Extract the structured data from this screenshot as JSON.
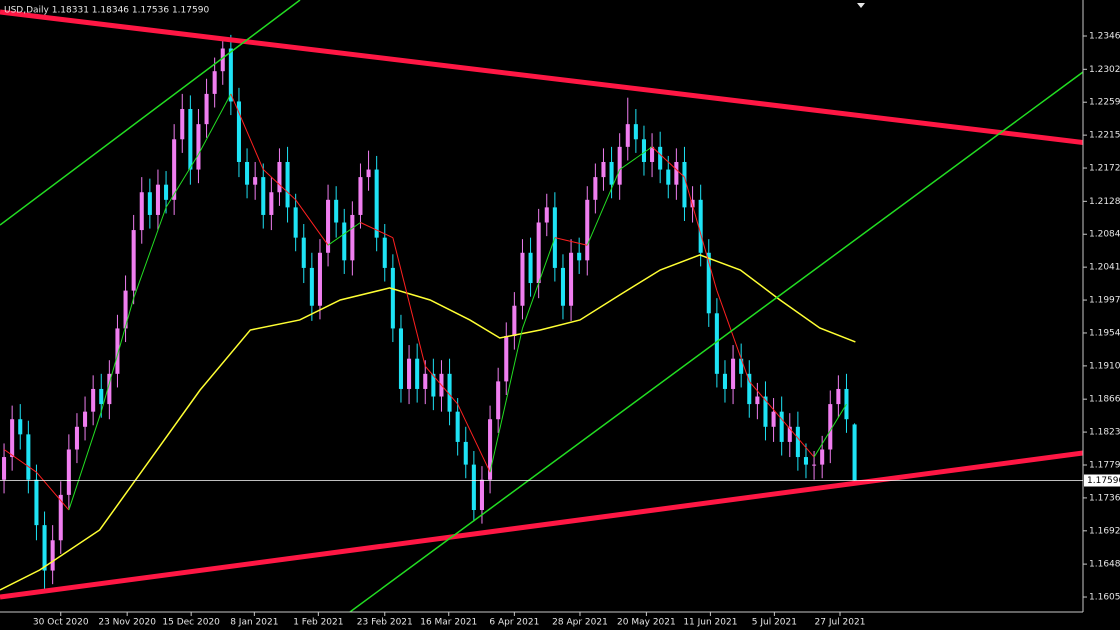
{
  "chart_data": {
    "type": "candlestick",
    "header": "USD,Daily  1.18331 1.18346 1.17536 1.17590",
    "up_color": "#f07ef0",
    "down_color": "#1ee3f5",
    "xlim": [
      0,
      133.7
    ],
    "xticks": [
      {
        "value": 7.5,
        "label": "30 Oct 2020"
      },
      {
        "value": 15.7,
        "label": "23 Nov 2020"
      },
      {
        "value": 23.6,
        "label": "15 Dec 2020"
      },
      {
        "value": 31.4,
        "label": "8 Jan 2021"
      },
      {
        "value": 39.3,
        "label": "1 Feb 2021"
      },
      {
        "value": 47.5,
        "label": "23 Feb 2021"
      },
      {
        "value": 55.4,
        "label": "16 Mar 2021"
      },
      {
        "value": 63.5,
        "label": "6 Apr 2021"
      },
      {
        "value": 71.6,
        "label": "28 Apr 2021"
      },
      {
        "value": 79.8,
        "label": "20 May 2021"
      },
      {
        "value": 87.7,
        "label": "11 Jun 2021"
      },
      {
        "value": 95.6,
        "label": "5 Jul 2021"
      },
      {
        "value": 103.7,
        "label": "27 Jul 2021"
      }
    ],
    "ylim": [
      1.15852,
      1.23941
    ],
    "yticks": [
      1.23465,
      1.23025,
      {
        "value": 1.2259,
        "label": "1.22590"
      },
      1.22155,
      {
        "value": 1.2172,
        "label": "1.21720"
      },
      {
        "value": 1.2128,
        "label": "1.21280"
      },
      1.20845,
      {
        "value": 1.2041,
        "label": "1.20410"
      },
      1.19975,
      {
        "value": 1.1954,
        "label": "1.19540"
      },
      1.19105,
      1.18665,
      {
        "value": 1.1823,
        "label": "1.18230"
      },
      1.17795,
      {
        "value": 1.1736,
        "label": "1.17360"
      },
      1.16925,
      1.16485,
      {
        "value": 1.1605,
        "label": "1.16050"
      }
    ],
    "price_line": {
      "value": 1.1759,
      "label": "1.17590",
      "color": "#ffffff"
    },
    "open": [
      1.176,
      1.179,
      1.184,
      1.182,
      1.176,
      1.17,
      1.164,
      1.168,
      1.174,
      1.18,
      1.183,
      1.185,
      1.188,
      1.186,
      1.19,
      1.196,
      1.201,
      1.209,
      1.214,
      1.211,
      1.215,
      1.213,
      1.221,
      1.225,
      1.217,
      1.223,
      1.227,
      1.23,
      1.233,
      1.226,
      1.218,
      1.215,
      1.216,
      1.211,
      1.214,
      1.218,
      1.212,
      1.208,
      1.204,
      1.199,
      1.206,
      1.213,
      1.21,
      1.205,
      1.211,
      1.216,
      1.217,
      1.208,
      1.204,
      1.196,
      1.188,
      1.192,
      1.188,
      1.19,
      1.187,
      1.19,
      1.185,
      1.181,
      1.178,
      1.172,
      1.176,
      1.184,
      1.189,
      1.195,
      1.199,
      1.206,
      1.202,
      1.21,
      1.212,
      1.204,
      1.199,
      1.206,
      1.205,
      1.213,
      1.216,
      1.218,
      1.215,
      1.22,
      1.223,
      1.221,
      1.218,
      1.22,
      1.217,
      1.215,
      1.218,
      1.212,
      1.213,
      1.206,
      1.198,
      1.19,
      1.188,
      1.192,
      1.19,
      1.186,
      1.187,
      1.183,
      1.185,
      1.181,
      1.183,
      1.179,
      1.178,
      1.178,
      1.18,
      1.186,
      1.188,
      1.18331
    ],
    "high": [
      1.1808,
      1.1858,
      1.186,
      1.1838,
      1.178,
      1.1718,
      1.17,
      1.1758,
      1.182,
      1.1848,
      1.187,
      1.1898,
      1.19,
      1.1918,
      1.1978,
      1.203,
      1.211,
      1.216,
      1.2158,
      1.217,
      1.2168,
      1.223,
      1.227,
      1.2268,
      1.225,
      1.229,
      1.2318,
      1.2345,
      1.2348,
      1.2278,
      1.2198,
      1.218,
      1.2178,
      1.216,
      1.2198,
      1.22,
      1.2138,
      1.2098,
      1.206,
      1.2078,
      1.215,
      1.2148,
      1.2118,
      1.2128,
      1.2178,
      1.2195,
      1.2188,
      1.2098,
      1.2058,
      1.1978,
      1.1938,
      1.194,
      1.1918,
      1.192,
      1.1918,
      1.192,
      1.1868,
      1.183,
      1.1798,
      1.1778,
      1.1858,
      1.1908,
      1.1968,
      1.2008,
      1.2078,
      1.208,
      1.2118,
      1.2138,
      1.214,
      1.2058,
      1.2078,
      1.208,
      1.2148,
      1.2178,
      1.2198,
      1.22,
      1.2218,
      1.2265,
      1.225,
      1.2228,
      1.2218,
      1.222,
      1.2188,
      1.2198,
      1.22,
      1.2148,
      1.215,
      1.2078,
      1.2,
      1.1918,
      1.1938,
      1.194,
      1.1918,
      1.1888,
      1.189,
      1.1868,
      1.187,
      1.1848,
      1.185,
      1.1808,
      1.1798,
      1.1818,
      1.1878,
      1.1898,
      1.19,
      1.18346
    ],
    "low": [
      1.1742,
      1.1772,
      1.18,
      1.1742,
      1.168,
      1.161,
      1.1622,
      1.1662,
      1.1722,
      1.1782,
      1.1812,
      1.1832,
      1.1842,
      1.184,
      1.1882,
      1.1942,
      1.1992,
      1.2072,
      1.2092,
      1.209,
      1.2112,
      1.211,
      1.2192,
      1.215,
      1.2152,
      1.2212,
      1.2252,
      1.2282,
      1.2242,
      1.216,
      1.2132,
      1.213,
      1.2092,
      1.209,
      1.2122,
      1.21,
      1.2062,
      1.202,
      1.197,
      1.1972,
      1.2042,
      1.208,
      1.2032,
      1.203,
      1.2092,
      1.2142,
      1.2062,
      1.2022,
      1.1942,
      1.1862,
      1.186,
      1.1862,
      1.186,
      1.1852,
      1.185,
      1.1832,
      1.1792,
      1.1762,
      1.1705,
      1.1702,
      1.1742,
      1.1822,
      1.1872,
      1.1932,
      1.1972,
      1.2002,
      1.2,
      1.2082,
      1.2022,
      1.1972,
      1.197,
      1.2032,
      1.203,
      1.2112,
      1.2142,
      1.2132,
      1.213,
      1.2182,
      1.2192,
      1.2162,
      1.216,
      1.2152,
      1.2132,
      1.213,
      1.2102,
      1.21,
      1.2042,
      1.1962,
      1.1882,
      1.1862,
      1.186,
      1.1882,
      1.1842,
      1.184,
      1.1812,
      1.181,
      1.1792,
      1.179,
      1.1772,
      1.1762,
      1.176,
      1.1762,
      1.1782,
      1.1842,
      1.1822,
      1.17536
    ],
    "close": [
      1.179,
      1.184,
      1.182,
      1.176,
      1.17,
      1.164,
      1.168,
      1.174,
      1.18,
      1.183,
      1.185,
      1.188,
      1.186,
      1.19,
      1.196,
      1.201,
      1.209,
      1.214,
      1.211,
      1.215,
      1.213,
      1.221,
      1.225,
      1.217,
      1.223,
      1.227,
      1.23,
      1.233,
      1.226,
      1.218,
      1.215,
      1.216,
      1.211,
      1.214,
      1.218,
      1.212,
      1.208,
      1.204,
      1.199,
      1.206,
      1.213,
      1.21,
      1.205,
      1.211,
      1.216,
      1.217,
      1.208,
      1.204,
      1.196,
      1.188,
      1.192,
      1.188,
      1.19,
      1.187,
      1.19,
      1.185,
      1.181,
      1.178,
      1.172,
      1.176,
      1.184,
      1.189,
      1.195,
      1.199,
      1.206,
      1.202,
      1.21,
      1.212,
      1.204,
      1.199,
      1.206,
      1.205,
      1.213,
      1.216,
      1.218,
      1.215,
      1.22,
      1.223,
      1.221,
      1.218,
      1.22,
      1.217,
      1.215,
      1.218,
      1.212,
      1.213,
      1.206,
      1.198,
      1.19,
      1.188,
      1.192,
      1.19,
      1.186,
      1.187,
      1.183,
      1.185,
      1.181,
      1.183,
      1.179,
      1.178,
      1.178,
      1.18,
      1.186,
      1.188,
      1.184,
      1.1759
    ],
    "slow_ma": {
      "color": "#ffff33",
      "x": [
        0,
        4.9,
        12.3,
        18.5,
        24.7,
        30.9,
        37,
        42,
        48.1,
        53.1,
        58,
        61.7,
        66.7,
        71.6,
        76.5,
        81.5,
        86.4,
        91.4,
        96.3,
        101.2,
        105.6
      ],
      "values": [
        1.16143,
        1.16407,
        1.16936,
        1.17861,
        1.18786,
        1.19579,
        1.19712,
        1.19976,
        1.20135,
        1.19976,
        1.19712,
        1.19474,
        1.19579,
        1.19712,
        1.20042,
        1.20372,
        1.20571,
        1.20372,
        1.19976,
        1.19606,
        1.19421
      ]
    },
    "fast_ma": {
      "up_color": "#22dd22",
      "down_color": "#ff2020",
      "x": [
        0.5,
        4.5,
        8.5,
        12.5,
        16.5,
        20.5,
        24.5,
        28.5,
        32.5,
        36.5,
        40.5,
        44.5,
        48.5,
        52.5,
        56.5,
        60.5,
        64.5,
        68.5,
        72.5,
        76.5,
        80.5,
        84.5,
        88.5,
        92.5,
        96.5,
        100.5,
        104.5
      ],
      "values": [
        1.18,
        1.177,
        1.172,
        1.185,
        1.2,
        1.212,
        1.219,
        1.227,
        1.217,
        1.213,
        1.207,
        1.21,
        1.208,
        1.191,
        1.186,
        1.177,
        1.196,
        1.208,
        1.207,
        1.217,
        1.22,
        1.216,
        1.201,
        1.189,
        1.184,
        1.179,
        1.186
      ]
    },
    "trendlines": [
      {
        "color": "#ff1744",
        "width": 5,
        "x": [
          0,
          133.7
        ],
        "y": [
          1.23782,
          1.22058
        ]
      },
      {
        "color": "#ff1744",
        "width": 5,
        "x": [
          0,
          133.7
        ],
        "y": [
          1.1605,
          1.17954
        ]
      },
      {
        "color": "#22dd22",
        "width": 1.5,
        "x": [
          0,
          37.04
        ],
        "y": [
          1.20967,
          1.23941
        ]
      },
      {
        "color": "#22dd22",
        "width": 1.5,
        "x": [
          43.2,
          133.7
        ],
        "y": [
          1.15852,
          1.22989
        ]
      }
    ]
  }
}
